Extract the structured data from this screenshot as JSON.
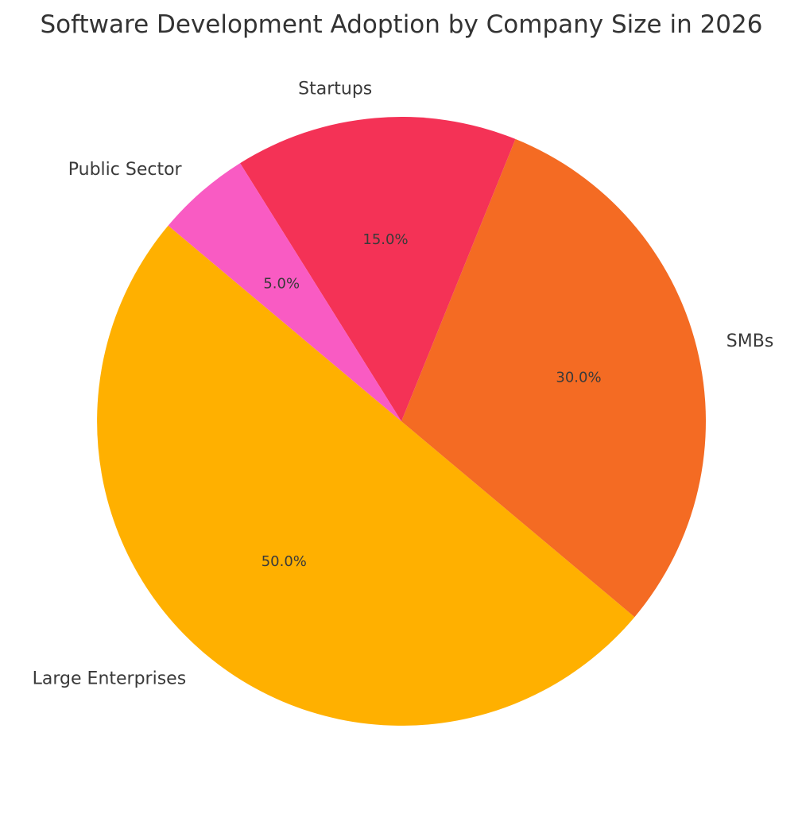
{
  "chart_data": {
    "type": "pie",
    "title": "Software Development Adoption by Company Size in 2026",
    "categories": [
      "Large Enterprises",
      "SMBs",
      "Startups",
      "Public Sector"
    ],
    "values": [
      50,
      30,
      15,
      5
    ],
    "value_labels": [
      "50.0%",
      "30.0%",
      "15.0%",
      "5.0%"
    ],
    "colors": [
      "#ffb000",
      "#f46b23",
      "#f43256",
      "#f95bc3"
    ],
    "start_angle_deg": 140,
    "direction": "counterclockwise",
    "legend": "none"
  }
}
